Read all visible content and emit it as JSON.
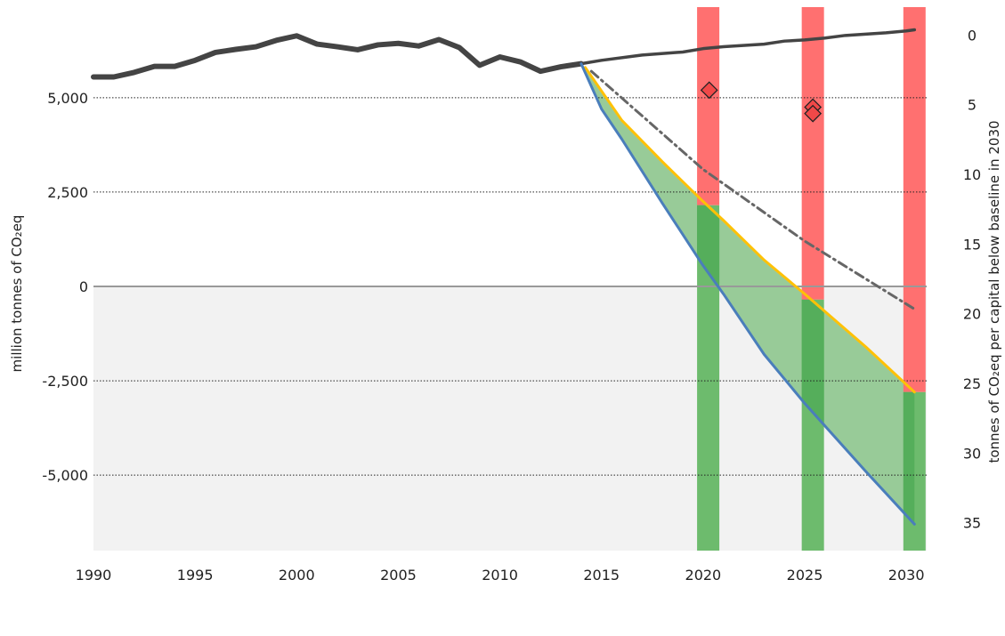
{
  "chart_data": {
    "type": "line",
    "title": "",
    "xlabel": "",
    "ylabel": "million tonnes of CO₂eq",
    "y2label": "tonnes of CO₂eq per capital below baseline in 2030",
    "xlim": [
      1990,
      2031
    ],
    "ylim": [
      -7000,
      7400
    ],
    "y2lim": [
      -2,
      37
    ],
    "grid": "dotted horizontal at major y ticks",
    "x_ticks": [
      1990,
      1995,
      2000,
      2005,
      2010,
      2015,
      2020,
      2025,
      2030
    ],
    "y_ticks": [
      -5000,
      -2500,
      0,
      2500,
      5000
    ],
    "y_tick_labels": [
      "-5,000",
      "-2,500",
      "0",
      "2,500",
      "5,000"
    ],
    "y2_ticks": [
      0,
      5,
      10,
      15,
      20,
      25,
      30,
      35
    ],
    "series": [
      {
        "kind": "historical",
        "color": "#444444",
        "x": [
          1990,
          1991,
          1992,
          1993,
          1994,
          1995,
          1996,
          1997,
          1998,
          1999,
          2000,
          2001,
          2002,
          2003,
          2004,
          2005,
          2006,
          2007,
          2008,
          2009,
          2010,
          2011,
          2012,
          2013,
          2014
        ],
        "y": [
          5550,
          5550,
          5670,
          5830,
          5830,
          5990,
          6200,
          6280,
          6350,
          6520,
          6640,
          6420,
          6350,
          6270,
          6400,
          6440,
          6370,
          6540,
          6330,
          5860,
          6080,
          5950,
          5700,
          5820,
          5900
        ]
      },
      {
        "kind": "baseline",
        "color": "#444444",
        "x": [
          2014,
          2015,
          2017,
          2019,
          2020,
          2021,
          2023,
          2024,
          2025,
          2026,
          2027,
          2029,
          2030,
          2030.4
        ],
        "y": [
          5900,
          5990,
          6130,
          6210,
          6300,
          6350,
          6420,
          6500,
          6530,
          6580,
          6650,
          6720,
          6770,
          6800
        ]
      },
      {
        "kind": "dash-dot",
        "color": "#666666",
        "x": [
          2014.5,
          2020,
          2025,
          2030.4
        ],
        "y": [
          5700,
          3100,
          1200,
          -600
        ]
      },
      {
        "kind": "yellow",
        "color": "#FFC107",
        "x": [
          2014.2,
          2016,
          2018,
          2020,
          2021,
          2023,
          2025,
          2028,
          2030.4
        ],
        "y": [
          5800,
          4400,
          3300,
          2250,
          1750,
          700,
          -200,
          -1600,
          -2800
        ]
      },
      {
        "kind": "blue",
        "color": "#4A7EBB",
        "x": [
          2014,
          2015,
          2016,
          2018,
          2020,
          2021,
          2023,
          2025,
          2028,
          2030.4
        ],
        "y": [
          5900,
          4700,
          3900,
          2200,
          550,
          -200,
          -1800,
          -3100,
          -4900,
          -6300
        ]
      }
    ],
    "bars": [
      {
        "x": 2020.25,
        "red_top": 7400,
        "split": 2150,
        "green_bottom": -7000
      },
      {
        "x": 2025.4,
        "red_top": 7400,
        "split": -350,
        "green_bottom": -7000
      },
      {
        "x": 2030.4,
        "red_top": 7400,
        "split": -2800,
        "green_bottom": -7000
      }
    ],
    "markers": [
      {
        "x": 2020.3,
        "y": 5200
      },
      {
        "x": 2025.4,
        "y": 4750
      },
      {
        "x": 2025.4,
        "y": 4580
      }
    ],
    "colors": {
      "historical": "#444444",
      "yellow": "#FFC107",
      "blue": "#4A7EBB",
      "fill_between": "#98CB98",
      "bar_red": "#FF7070",
      "bar_green": "#6DBB6D",
      "bar_green_overlap": "#55AE5B",
      "negative_region": "#F2F2F2",
      "marker": "#F04848"
    }
  }
}
